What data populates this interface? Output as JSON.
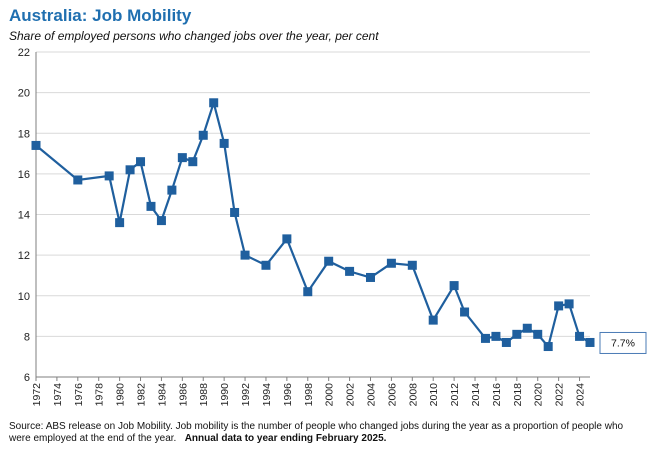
{
  "header": {
    "title": "Australia: Job Mobility",
    "subtitle": "Share of employed persons who changed jobs over the year, per cent"
  },
  "footer": {
    "source": "Source: ABS release on Job Mobility.  Job mobility is the number of people who changed jobs during the year as a proportion of people who were employed at the end of the year.",
    "note": "Annual data to year ending February 2025."
  },
  "chart_data": {
    "type": "line",
    "title": "Australia: Job Mobility",
    "subtitle": "Share of employed persons who changed jobs over the year, per cent",
    "xlabel": "",
    "ylabel": "",
    "xlim": [
      1972,
      2025
    ],
    "ylim": [
      6,
      22
    ],
    "yticks": [
      6,
      8,
      10,
      12,
      14,
      16,
      18,
      20,
      22
    ],
    "xticks": [
      1972,
      1974,
      1976,
      1978,
      1980,
      1982,
      1984,
      1986,
      1988,
      1990,
      1992,
      1994,
      1996,
      1998,
      2000,
      2002,
      2004,
      2006,
      2008,
      2010,
      2012,
      2014,
      2016,
      2018,
      2020,
      2022,
      2024
    ],
    "grid": true,
    "colors": {
      "series": "#1f5f9e",
      "grid": "#d9d9d9",
      "axis": "#7f7f7f",
      "title": "#1f6fb0"
    },
    "series": [
      {
        "name": "Job mobility",
        "x": [
          1972,
          1976,
          1979,
          1980,
          1981,
          1982,
          1983,
          1984,
          1985,
          1986,
          1987,
          1988,
          1989,
          1990,
          1991,
          1992,
          1994,
          1996,
          1998,
          2000,
          2002,
          2004,
          2006,
          2008,
          2010,
          2012,
          2013,
          2015,
          2016,
          2017,
          2018,
          2019,
          2020,
          2021,
          2022,
          2023,
          2024,
          2025
        ],
        "values": [
          17.4,
          15.7,
          15.9,
          13.6,
          16.2,
          16.6,
          14.4,
          13.7,
          15.2,
          16.8,
          16.6,
          17.9,
          19.5,
          17.5,
          14.1,
          12.0,
          11.5,
          12.8,
          10.2,
          11.7,
          11.2,
          10.9,
          11.6,
          11.5,
          8.8,
          10.5,
          9.2,
          7.9,
          8.0,
          7.7,
          8.1,
          8.4,
          8.1,
          7.5,
          9.5,
          9.6,
          8.0,
          7.7
        ]
      }
    ],
    "annotations": [
      {
        "text": "7.7%",
        "x": 2025,
        "y": 7.7
      }
    ]
  }
}
